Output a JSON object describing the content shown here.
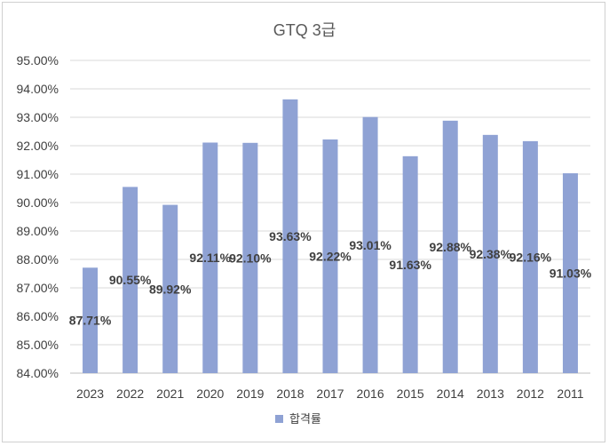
{
  "chart_data": {
    "type": "bar",
    "title": "GTQ 3급",
    "xlabel": "",
    "ylabel": "",
    "categories": [
      "2023",
      "2022",
      "2021",
      "2020",
      "2019",
      "2018",
      "2017",
      "2016",
      "2015",
      "2014",
      "2013",
      "2012",
      "2011"
    ],
    "series": [
      {
        "name": "합격률",
        "values": [
          87.71,
          90.55,
          89.92,
          92.11,
          92.1,
          93.63,
          92.22,
          93.01,
          91.63,
          92.88,
          92.38,
          92.16,
          91.03
        ],
        "labels": [
          "87.71%",
          "90.55%",
          "89.92%",
          "92.11%",
          "92.10%",
          "93.63%",
          "92.22%",
          "93.01%",
          "91.63%",
          "92.88%",
          "92.38%",
          "92.16%",
          "91.03%"
        ]
      }
    ],
    "ylim": [
      84,
      95
    ],
    "yticks": [
      "84.00%",
      "85.00%",
      "86.00%",
      "87.00%",
      "88.00%",
      "89.00%",
      "90.00%",
      "91.00%",
      "92.00%",
      "93.00%",
      "94.00%",
      "95.00%"
    ],
    "grid": true,
    "legend_position": "bottom",
    "bar_color": "#8FA2D4"
  }
}
